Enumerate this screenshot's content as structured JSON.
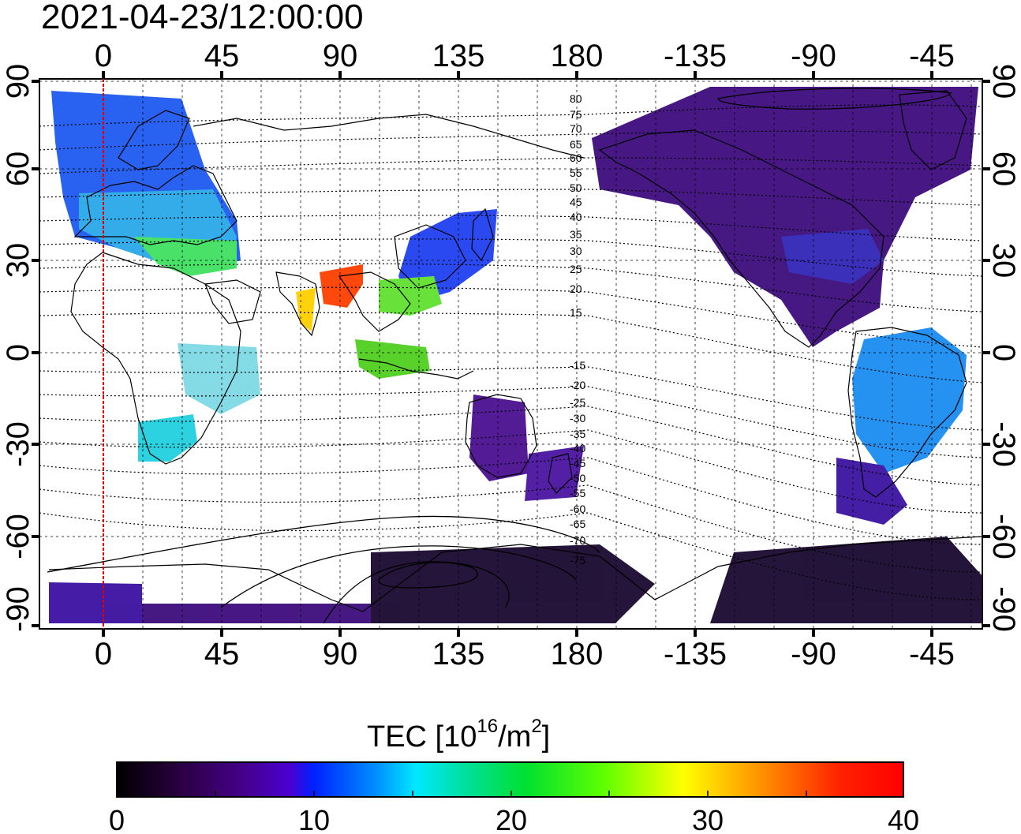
{
  "timestamp": "2021-04-23/12:00:00",
  "map": {
    "top_lon_ticks": [
      "0",
      "45",
      "90",
      "135",
      "180",
      "-135",
      "-90",
      "-45"
    ],
    "bottom_lon_ticks": [
      "0",
      "45",
      "90",
      "135",
      "180",
      "-135",
      "-90",
      "-45"
    ],
    "left_lat_ticks": [
      "90",
      "60",
      "30",
      "0",
      "-30",
      "-60",
      "-90"
    ],
    "right_lat_ticks": [
      "90",
      "60",
      "30",
      "0",
      "-30",
      "-60",
      "-90"
    ],
    "contour_labels": [
      "80",
      "75",
      "70",
      "65",
      "60",
      "55",
      "50",
      "45",
      "40",
      "35",
      "30",
      "25",
      "20",
      "15",
      "-15",
      "-20",
      "-25",
      "-30",
      "-35",
      "-40",
      "-45",
      "-50",
      "-55",
      "-60",
      "-65",
      "-70",
      "-75"
    ]
  },
  "colorbar": {
    "title": "TEC  [10",
    "title_sup": "16",
    "title_unit": "/m",
    "title_sup2": "2",
    "title_end": "]",
    "tick_labels": [
      "0",
      "10",
      "20",
      "30",
      "40"
    ],
    "colors": [
      "#000000",
      "#3a0068",
      "#5500c8",
      "#0030ff",
      "#00b0ff",
      "#00f0f0",
      "#00e070",
      "#00ff00",
      "#c0ff00",
      "#ffff00",
      "#ff9000",
      "#ff3000",
      "#ff0000"
    ]
  }
}
